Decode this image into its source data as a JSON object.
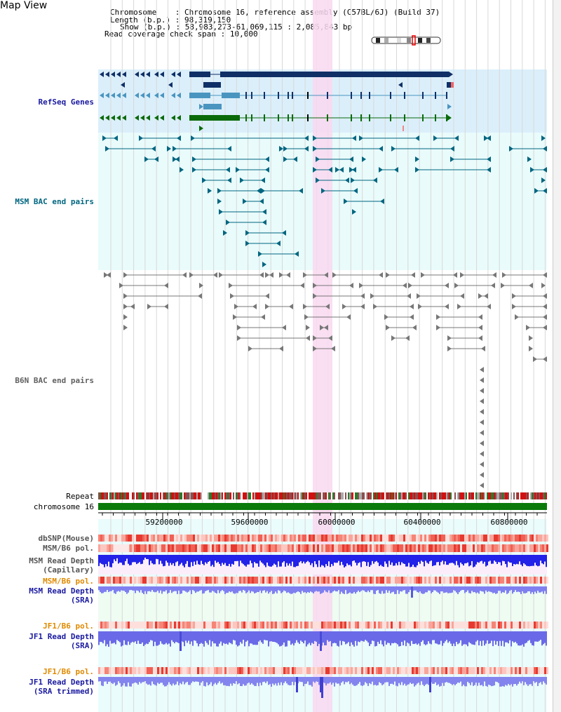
{
  "title": "Map View",
  "header": {
    "chromosome_label": "Chromosome",
    "chromosome_value": "Chromosome 16, reference assembly (C57BL/6J) (Build 37)",
    "length_label": "Length (b.p.)",
    "length_value": "98,319,150",
    "show_label": "Show (b.p.)",
    "show_value": "58,983,273-61,069,115 : 2,085,843 bp",
    "coverage_label": "Read coverage check span",
    "coverage_value": "10,000"
  },
  "tracks": {
    "refseq": "RefSeq Genes",
    "msm_bac": "MSM BAC end pairs",
    "b6n_bac": "B6N BAC end pairs",
    "repeat": "Repeat",
    "chromosome": "chromosome 16",
    "dbsnp": "dbSNP(Mouse)",
    "msm_pol": "MSM/B6 pol.",
    "msm_depth_cap_1": "MSM Read Depth",
    "msm_depth_cap_2": "(Capillary)",
    "msm_pol2": "MSM/B6 pol.",
    "msm_depth_sra_1": "MSM Read Depth",
    "msm_depth_sra_2": "(SRA)",
    "jf1_pol": "JF1/B6 pol.",
    "jf1_depth_1": "JF1 Read Depth",
    "jf1_depth_2": "(SRA)",
    "jf1_pol2": "JF1/B6 pol.",
    "jf1_trim_1": "JF1 Read Depth",
    "jf1_trim_2": "(SRA trimmed)"
  },
  "axis": {
    "ticks": [
      "59200000",
      "59600000",
      "60000000",
      "60400000",
      "60800000"
    ]
  },
  "colors": {
    "refseq_bg": "#dbeffb",
    "bac_bg": "#e9fbfb",
    "highlight": "#f9d8f0",
    "gene_dark": "#0f2f66",
    "gene_mid": "#4a95c0",
    "gene_green": "#0a6a0a",
    "msm_label": "#006680",
    "depth_blue": "#2a2ae0",
    "label_blue": "#1a1aa0",
    "label_orange": "#e08a00"
  }
}
